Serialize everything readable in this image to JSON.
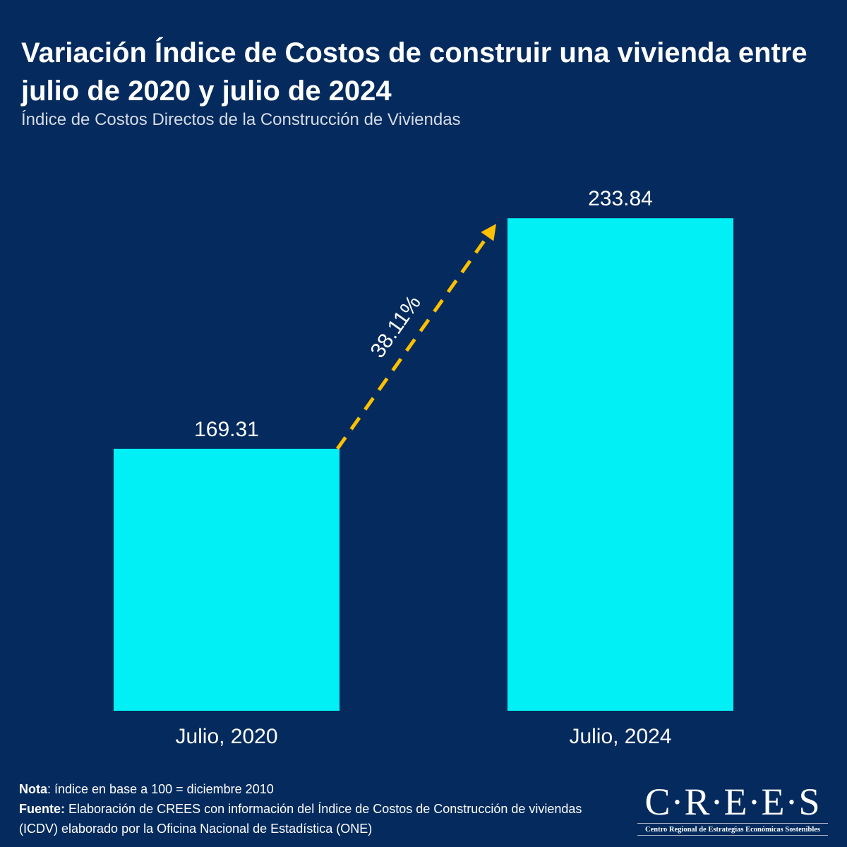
{
  "title": "Variación Índice de Costos de construir una vivienda entre julio de 2020 y julio de 2024",
  "subtitle": "Índice de Costos Directos de la Construcción de Viviendas",
  "chart_data": {
    "type": "bar",
    "categories": [
      "Julio, 2020",
      "Julio, 2024"
    ],
    "values": [
      169.31,
      233.84
    ],
    "value_labels": [
      "169.31",
      "233.84"
    ],
    "ylim": [
      96,
      240
    ],
    "annotation": "38.11%",
    "colors": {
      "bar": "#00f0f5",
      "arrow": "#ffc000",
      "background": "#052b5e"
    }
  },
  "footer": {
    "nota_label": "Nota",
    "nota_text": ": índice en base a 100 = diciembre 2010",
    "fuente_label": "Fuente:",
    "fuente_text": " Elaboración de CREES con información del Índice de Costos de Construcción de viviendas (ICDV) elaborado por la Oficina Nacional de Estadística (ONE)"
  },
  "logo": {
    "name": "C·R·E·E·S",
    "tagline": "Centro Regional de Estrategias Económicas Sostenibles"
  }
}
